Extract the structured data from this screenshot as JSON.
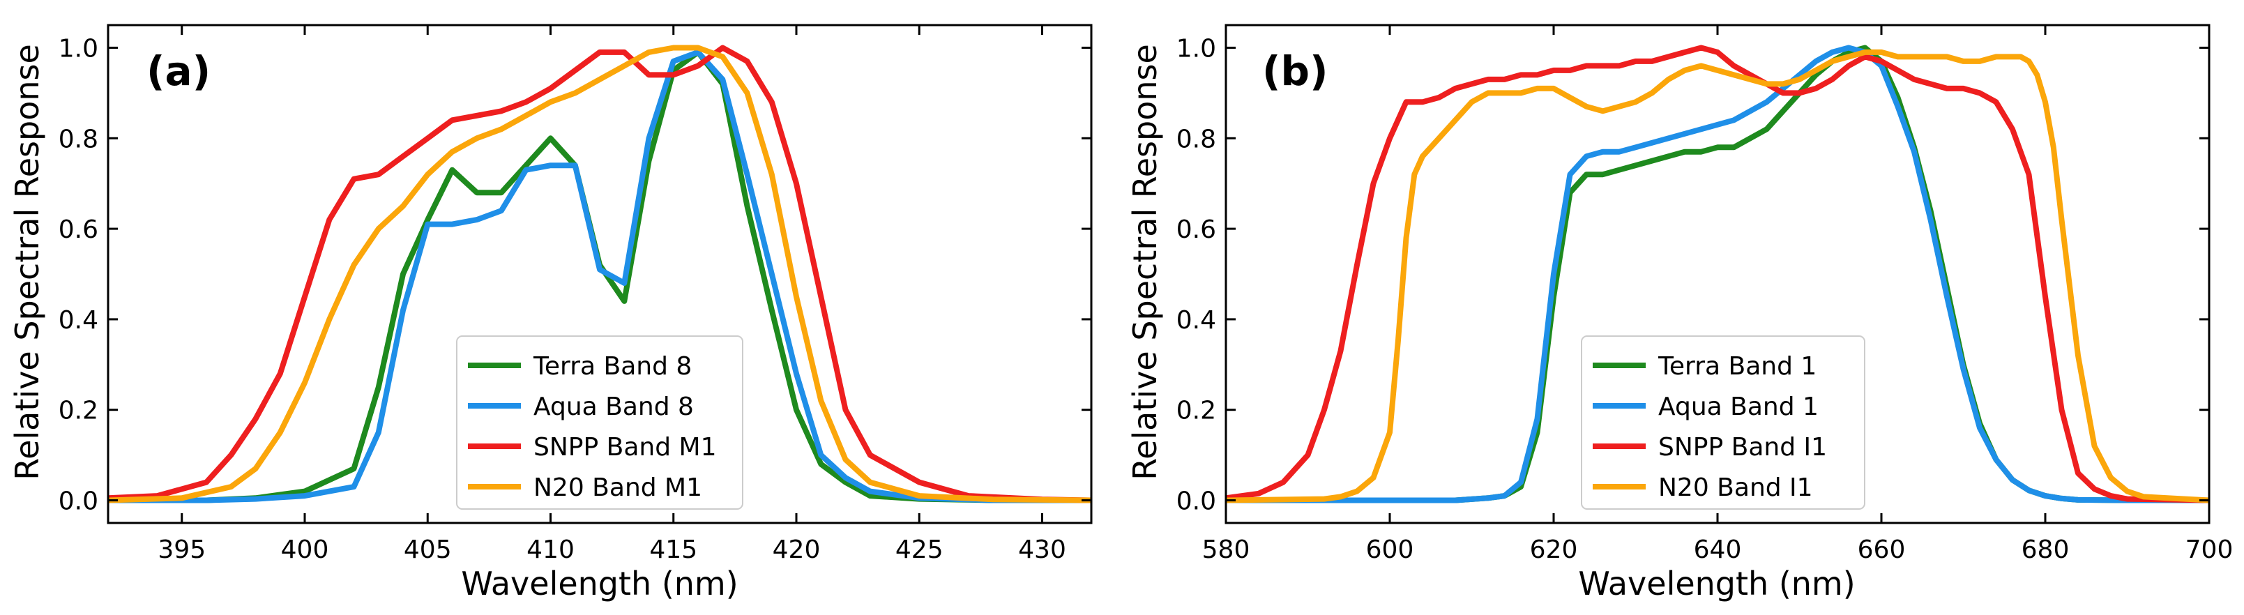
{
  "chart_data": [
    {
      "type": "line",
      "panel_label": "(a)",
      "xlabel": "Wavelength (nm)",
      "ylabel": "Relative Spectral Response",
      "xlim": [
        392,
        432
      ],
      "ylim": [
        -0.05,
        1.05
      ],
      "xticks": [
        395,
        400,
        405,
        410,
        415,
        420,
        425,
        430
      ],
      "yticks": [
        0.0,
        0.2,
        0.4,
        0.6,
        0.8,
        1.0
      ],
      "ytick_labels": [
        "0.0",
        "0.2",
        "0.4",
        "0.6",
        "0.8",
        "1.0"
      ],
      "legend_position": "lower-center",
      "series": [
        {
          "name": "Terra Band 8",
          "color": "#1e8a1e",
          "x": [
            392,
            396,
            398,
            400,
            402,
            403,
            404,
            405,
            406,
            407,
            408,
            409,
            410,
            411,
            412,
            413,
            414,
            415,
            416,
            417,
            418,
            419,
            420,
            421,
            422,
            423,
            425,
            428,
            432
          ],
          "y": [
            0,
            0,
            0.005,
            0.02,
            0.07,
            0.25,
            0.5,
            0.62,
            0.73,
            0.68,
            0.68,
            0.74,
            0.8,
            0.74,
            0.52,
            0.44,
            0.75,
            0.95,
            0.99,
            0.92,
            0.65,
            0.42,
            0.2,
            0.08,
            0.04,
            0.01,
            0.003,
            0,
            0
          ]
        },
        {
          "name": "Aqua Band 8",
          "color": "#1f8fe8",
          "x": [
            392,
            396,
            398,
            400,
            402,
            403,
            404,
            405,
            406,
            407,
            408,
            409,
            410,
            411,
            412,
            413,
            414,
            415,
            416,
            417,
            418,
            419,
            420,
            421,
            422,
            423,
            425,
            428,
            432
          ],
          "y": [
            0,
            0,
            0.003,
            0.01,
            0.03,
            0.15,
            0.42,
            0.61,
            0.61,
            0.62,
            0.64,
            0.73,
            0.74,
            0.74,
            0.51,
            0.48,
            0.8,
            0.97,
            0.99,
            0.93,
            0.72,
            0.5,
            0.28,
            0.1,
            0.05,
            0.02,
            0.005,
            0,
            0
          ]
        },
        {
          "name": "SNPP Band M1",
          "color": "#ee1f1f",
          "x": [
            392,
            394,
            396,
            397,
            398,
            399,
            400,
            401,
            402,
            403,
            404,
            405,
            406,
            407,
            408,
            409,
            410,
            411,
            412,
            413,
            414,
            415,
            416,
            417,
            418,
            419,
            420,
            421,
            422,
            423,
            425,
            427,
            430,
            432
          ],
          "y": [
            0.005,
            0.01,
            0.04,
            0.1,
            0.18,
            0.28,
            0.45,
            0.62,
            0.71,
            0.72,
            0.76,
            0.8,
            0.84,
            0.85,
            0.86,
            0.88,
            0.91,
            0.95,
            0.99,
            0.99,
            0.94,
            0.94,
            0.96,
            1.0,
            0.97,
            0.88,
            0.7,
            0.45,
            0.2,
            0.1,
            0.04,
            0.01,
            0.002,
            0
          ]
        },
        {
          "name": "N20 Band M1",
          "color": "#fba60a",
          "x": [
            392,
            395,
            397,
            398,
            399,
            400,
            401,
            402,
            403,
            404,
            405,
            406,
            407,
            408,
            409,
            410,
            411,
            412,
            413,
            414,
            415,
            416,
            417,
            418,
            419,
            420,
            421,
            422,
            423,
            425,
            428,
            432
          ],
          "y": [
            0,
            0.005,
            0.03,
            0.07,
            0.15,
            0.26,
            0.4,
            0.52,
            0.6,
            0.65,
            0.72,
            0.77,
            0.8,
            0.82,
            0.85,
            0.88,
            0.9,
            0.93,
            0.96,
            0.99,
            1.0,
            1.0,
            0.98,
            0.9,
            0.72,
            0.45,
            0.22,
            0.09,
            0.04,
            0.01,
            0.002,
            0
          ]
        }
      ]
    },
    {
      "type": "line",
      "panel_label": "(b)",
      "xlabel": "Wavelength (nm)",
      "ylabel": "Relative Spectral Response",
      "xlim": [
        580,
        700
      ],
      "ylim": [
        -0.05,
        1.05
      ],
      "xticks": [
        580,
        600,
        620,
        640,
        660,
        680,
        700
      ],
      "yticks": [
        0.0,
        0.2,
        0.4,
        0.6,
        0.8,
        1.0
      ],
      "ytick_labels": [
        "0.0",
        "0.2",
        "0.4",
        "0.6",
        "0.8",
        "1.0"
      ],
      "legend_position": "lower-center",
      "series": [
        {
          "name": "Terra Band 1",
          "color": "#1e8a1e",
          "x": [
            580,
            608,
            612,
            614,
            616,
            618,
            620,
            622,
            624,
            626,
            628,
            630,
            632,
            634,
            636,
            638,
            640,
            642,
            644,
            646,
            648,
            650,
            652,
            654,
            656,
            658,
            660,
            662,
            664,
            666,
            668,
            670,
            672,
            674,
            676,
            678,
            680,
            682,
            684,
            690,
            700
          ],
          "y": [
            0,
            0,
            0.005,
            0.01,
            0.03,
            0.15,
            0.45,
            0.68,
            0.72,
            0.72,
            0.73,
            0.74,
            0.75,
            0.76,
            0.77,
            0.77,
            0.78,
            0.78,
            0.8,
            0.82,
            0.86,
            0.9,
            0.94,
            0.97,
            0.99,
            1.0,
            0.97,
            0.89,
            0.78,
            0.64,
            0.47,
            0.3,
            0.17,
            0.09,
            0.045,
            0.022,
            0.01,
            0.004,
            0.001,
            0,
            0
          ]
        },
        {
          "name": "Aqua Band 1",
          "color": "#1f8fe8",
          "x": [
            580,
            608,
            612,
            614,
            616,
            618,
            620,
            622,
            624,
            626,
            628,
            630,
            632,
            634,
            636,
            638,
            640,
            642,
            644,
            646,
            648,
            650,
            652,
            654,
            656,
            658,
            660,
            662,
            664,
            666,
            668,
            670,
            672,
            674,
            676,
            678,
            680,
            682,
            684,
            690,
            700
          ],
          "y": [
            0,
            0,
            0.005,
            0.01,
            0.04,
            0.18,
            0.5,
            0.72,
            0.76,
            0.77,
            0.77,
            0.78,
            0.79,
            0.8,
            0.81,
            0.82,
            0.83,
            0.84,
            0.86,
            0.88,
            0.91,
            0.94,
            0.97,
            0.99,
            1.0,
            0.99,
            0.96,
            0.87,
            0.77,
            0.62,
            0.45,
            0.29,
            0.16,
            0.09,
            0.045,
            0.022,
            0.01,
            0.004,
            0.001,
            0,
            0
          ]
        },
        {
          "name": "SNPP Band I1",
          "color": "#ee1f1f",
          "x": [
            580,
            584,
            587,
            590,
            592,
            594,
            596,
            598,
            600,
            602,
            604,
            606,
            608,
            610,
            612,
            614,
            616,
            618,
            620,
            622,
            624,
            626,
            628,
            630,
            632,
            634,
            636,
            638,
            640,
            642,
            644,
            646,
            648,
            650,
            652,
            654,
            656,
            658,
            660,
            662,
            664,
            666,
            668,
            670,
            672,
            674,
            676,
            678,
            680,
            682,
            684,
            686,
            688,
            690,
            700
          ],
          "y": [
            0.005,
            0.015,
            0.04,
            0.1,
            0.2,
            0.33,
            0.52,
            0.7,
            0.8,
            0.88,
            0.88,
            0.89,
            0.91,
            0.92,
            0.93,
            0.93,
            0.94,
            0.94,
            0.95,
            0.95,
            0.96,
            0.96,
            0.96,
            0.97,
            0.97,
            0.98,
            0.99,
            1.0,
            0.99,
            0.96,
            0.94,
            0.92,
            0.9,
            0.9,
            0.91,
            0.93,
            0.96,
            0.98,
            0.97,
            0.95,
            0.93,
            0.92,
            0.91,
            0.91,
            0.9,
            0.88,
            0.82,
            0.72,
            0.45,
            0.2,
            0.06,
            0.025,
            0.01,
            0.003,
            0
          ]
        },
        {
          "name": "N20 Band I1",
          "color": "#fba60a",
          "x": [
            580,
            592,
            594,
            596,
            598,
            600,
            601,
            602,
            603,
            604,
            606,
            608,
            610,
            612,
            614,
            616,
            618,
            620,
            622,
            624,
            626,
            628,
            630,
            632,
            634,
            636,
            638,
            640,
            642,
            644,
            646,
            648,
            650,
            652,
            654,
            656,
            658,
            660,
            662,
            664,
            666,
            668,
            670,
            672,
            674,
            676,
            677,
            678,
            679,
            680,
            681,
            682,
            684,
            686,
            688,
            690,
            692,
            700
          ],
          "y": [
            0,
            0.003,
            0.008,
            0.02,
            0.05,
            0.15,
            0.35,
            0.58,
            0.72,
            0.76,
            0.8,
            0.84,
            0.88,
            0.9,
            0.9,
            0.9,
            0.91,
            0.91,
            0.89,
            0.87,
            0.86,
            0.87,
            0.88,
            0.9,
            0.93,
            0.95,
            0.96,
            0.95,
            0.94,
            0.93,
            0.92,
            0.92,
            0.93,
            0.95,
            0.97,
            0.98,
            0.99,
            0.99,
            0.98,
            0.98,
            0.98,
            0.98,
            0.97,
            0.97,
            0.98,
            0.98,
            0.98,
            0.97,
            0.94,
            0.88,
            0.78,
            0.62,
            0.32,
            0.12,
            0.05,
            0.02,
            0.008,
            0
          ]
        }
      ]
    }
  ]
}
